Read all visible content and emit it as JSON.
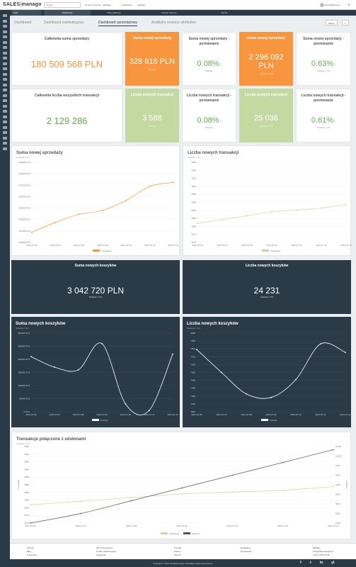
{
  "topbar": {
    "logo_main": "SALES",
    "logo_sep": "|",
    "logo_tail": "manago",
    "search_placeholder": "Szukaj...",
    "links": [
      "Centrum pomocy",
      "Aplikacje",
      "Ustawienia",
      "Eksport"
    ],
    "user": "admin@firma.pl"
  },
  "navbar": {
    "brand": "Start",
    "tabs": [
      "Dashboard",
      "Moje aplikacje",
      "Obszar roboczy",
      "Wyniki"
    ]
  },
  "subtabs": {
    "items": [
      "Dashboard",
      "Dashboard marketingowy",
      "Dashboard sprzedażowy",
      "Analityka revenue attribution"
    ],
    "active_index": 2,
    "btn_label": "Więcej",
    "btn_plus": "+"
  },
  "stats": {
    "total_sales": {
      "title": "Całkowita suma sprzedaży",
      "value": "180 509 568 PLN"
    },
    "new_sales": {
      "title": "Suma nowej sprzedaży",
      "value": "328 818 PLN",
      "sub": "Miesiąc"
    },
    "new_sales_cmp_a": {
      "title": "Suma nowej sprzedaży - porównanie",
      "value": "0.08%",
      "sub": "Miesiąc"
    },
    "new_sales_b": {
      "title": "Suma nowej sprzedaży",
      "value": "2 296 092 PLN",
      "sub": "Ostatnie 7 dni"
    },
    "new_sales_cmp_b": {
      "title": "Suma nowej sprzedaży - porównanie",
      "value": "0.63%",
      "sub": "Ostatnie 7 dni"
    },
    "total_tx": {
      "title": "Całkowita liczba wszystkich transakcji",
      "value": "2 129 286"
    },
    "new_tx": {
      "title": "Liczba nowych transakcji",
      "value": "3 588",
      "sub": "Miesiąc"
    },
    "new_tx_cmp_a": {
      "title": "Liczba nowych transakcji - porównanie",
      "value": "0.08%",
      "sub": "Miesiąc"
    },
    "new_tx_b": {
      "title": "Liczba nowych transakcji",
      "value": "25 038",
      "sub": "Ostatnie 7 dni"
    },
    "new_tx_cmp_b": {
      "title": "Liczba nowych transakcji - porównanie",
      "value": "0.61%",
      "sub": "Ostatnie 7 dni"
    },
    "arrow": "↑"
  },
  "carts": {
    "sum": {
      "title": "Suma nowych koszyków",
      "value": "3 042 720 PLN",
      "sub": "Ostatnie 7 dni"
    },
    "count": {
      "title": "Liczba nowych koszyków",
      "value": "24 231",
      "sub": "Ostatnie 7 dni"
    }
  },
  "charts_meta": {
    "c1": {
      "title": "Suma nowej sprzedaży",
      "sub": "Ostatnie 7 dni",
      "legend": "Transakcje"
    },
    "c2": {
      "title": "Liczba nowych transakcji",
      "sub": "Ostatnie 7 dni",
      "legend": "Transakcje"
    },
    "c3": {
      "title": "Suma nowych koszyków",
      "sub": "Ostatnie 7 dni",
      "legend": "Koszyki"
    },
    "c4": {
      "title": "Liczba nowych koszyków",
      "sub": "Ostatnie 7 dni",
      "legend": "Koszyki"
    },
    "c5": {
      "title": "Transakcje połączone z odsłonami",
      "sub": "Ostatnie 7 dni",
      "legend_a": "Transakcje",
      "legend_b": "Odsłony",
      "ylabel_left": "Transakcje",
      "ylabel_right": "Odsłony"
    }
  },
  "chart_data": [
    {
      "type": "line",
      "title": "Suma nowej sprzedaży",
      "x": [
        "2021-07-06",
        "2021-07-07",
        "2021-07-08",
        "2021-07-09",
        "2021-07-10",
        "2021-07-11",
        "2021-07-12"
      ],
      "values": [
        326000,
        327000,
        327800,
        328200,
        329200,
        330600,
        331000
      ],
      "color": "#f8953f",
      "ylim": [
        325000,
        333000
      ],
      "yticks": [
        "326000 PLN",
        "327000 PLN",
        "328000 PLN",
        "329000 PLN",
        "330000 PLN",
        "331000 PLN",
        "332000 PLN",
        "333000 PLN"
      ]
    },
    {
      "type": "line",
      "title": "Liczba nowych transakcji",
      "x": [
        "2021-07-06",
        "2021-07-07",
        "2021-07-08",
        "2021-07-09",
        "2021-07-10",
        "2021-07-11",
        "2021-07-12"
      ],
      "values": [
        3580,
        3581,
        3582,
        3583,
        3583.5,
        3584,
        3585
      ],
      "color": "#c4d9a1",
      "ylim": [
        3575,
        3596
      ],
      "yticks": [
        "3576",
        "3578",
        "3580",
        "3582",
        "3584",
        "3586",
        "3588",
        "3590",
        "3592",
        "3594",
        "3596"
      ]
    },
    {
      "type": "line",
      "title": "Suma nowych koszyków",
      "x": [
        "2021-07-06",
        "2021-07-07",
        "2021-07-08",
        "2021-07-09",
        "2021-07-10",
        "2021-07-11",
        "2021-07-12"
      ],
      "values": [
        210000,
        170000,
        160000,
        260000,
        30000,
        5000,
        220000
      ],
      "color": "#ffffff",
      "ylim": [
        0,
        300000
      ],
      "yticks": [
        "0 PLN",
        "50000 PLN",
        "100000 PLN",
        "150000 PLN",
        "200000 PLN",
        "250000 PLN",
        "300000 PLN"
      ]
    },
    {
      "type": "line",
      "title": "Liczba nowych koszyków",
      "x": [
        "2021-07-06",
        "2021-07-07",
        "2021-07-08",
        "2021-07-09",
        "2021-07-10",
        "2021-07-11",
        "2021-07-12"
      ],
      "values": [
        7820,
        7500,
        7200,
        7150,
        7400,
        7900,
        7780
      ],
      "color": "#ffffff",
      "ylim": [
        6950,
        8050
      ],
      "yticks": [
        "7000",
        "7100",
        "7200",
        "7300",
        "7400",
        "7500",
        "7600",
        "7700",
        "7800",
        "7900",
        "8000"
      ]
    },
    {
      "type": "line",
      "title": "Transakcje połączone z odsłonami",
      "x": [
        "2021-07-06",
        "2021-07-07",
        "2021-07-08",
        "2021-07-09",
        "2021-07-10",
        "2021-07-11",
        "2021-07-12"
      ],
      "series": [
        {
          "name": "Transakcje",
          "values": [
            3580,
            3581,
            3582,
            3583,
            3583.5,
            3584,
            3585
          ],
          "color": "#c4d9a1"
        },
        {
          "name": "Odsłony",
          "values": [
            7900,
            8200,
            8600,
            9000,
            9400,
            9800,
            10200
          ],
          "color": "#555555"
        }
      ],
      "ylim": [
        3575,
        3596
      ],
      "yticks": [
        "3576",
        "3578",
        "3580",
        "3582",
        "3584",
        "3586",
        "3588",
        "3590",
        "3592",
        "3594",
        "3596"
      ],
      "yticks_right": [
        "7900",
        "8200",
        "8500",
        "8800",
        "9100",
        "9400",
        "9700",
        "10000",
        "10300"
      ]
    }
  ],
  "footer": {
    "col1": [
      "Wersja",
      "Blog",
      "E-learning"
    ],
    "col2": [
      "API & Developers",
      "Źródła marketingowe",
      "Integracje"
    ],
    "col3": [
      "Kontakt",
      "Partner",
      "Kariera"
    ],
    "col4": [
      "Regulamin",
      "Prywatność"
    ],
    "contact_head": "Pomoc",
    "contact": [
      "info@salesmanago.pl",
      "+48 12 345 67 89"
    ],
    "copyright": "Copyright © 2021 SALESmanago. Wszelkie prawa zastrzeżone.",
    "social": [
      "f",
      "t",
      "in",
      "yt"
    ]
  }
}
